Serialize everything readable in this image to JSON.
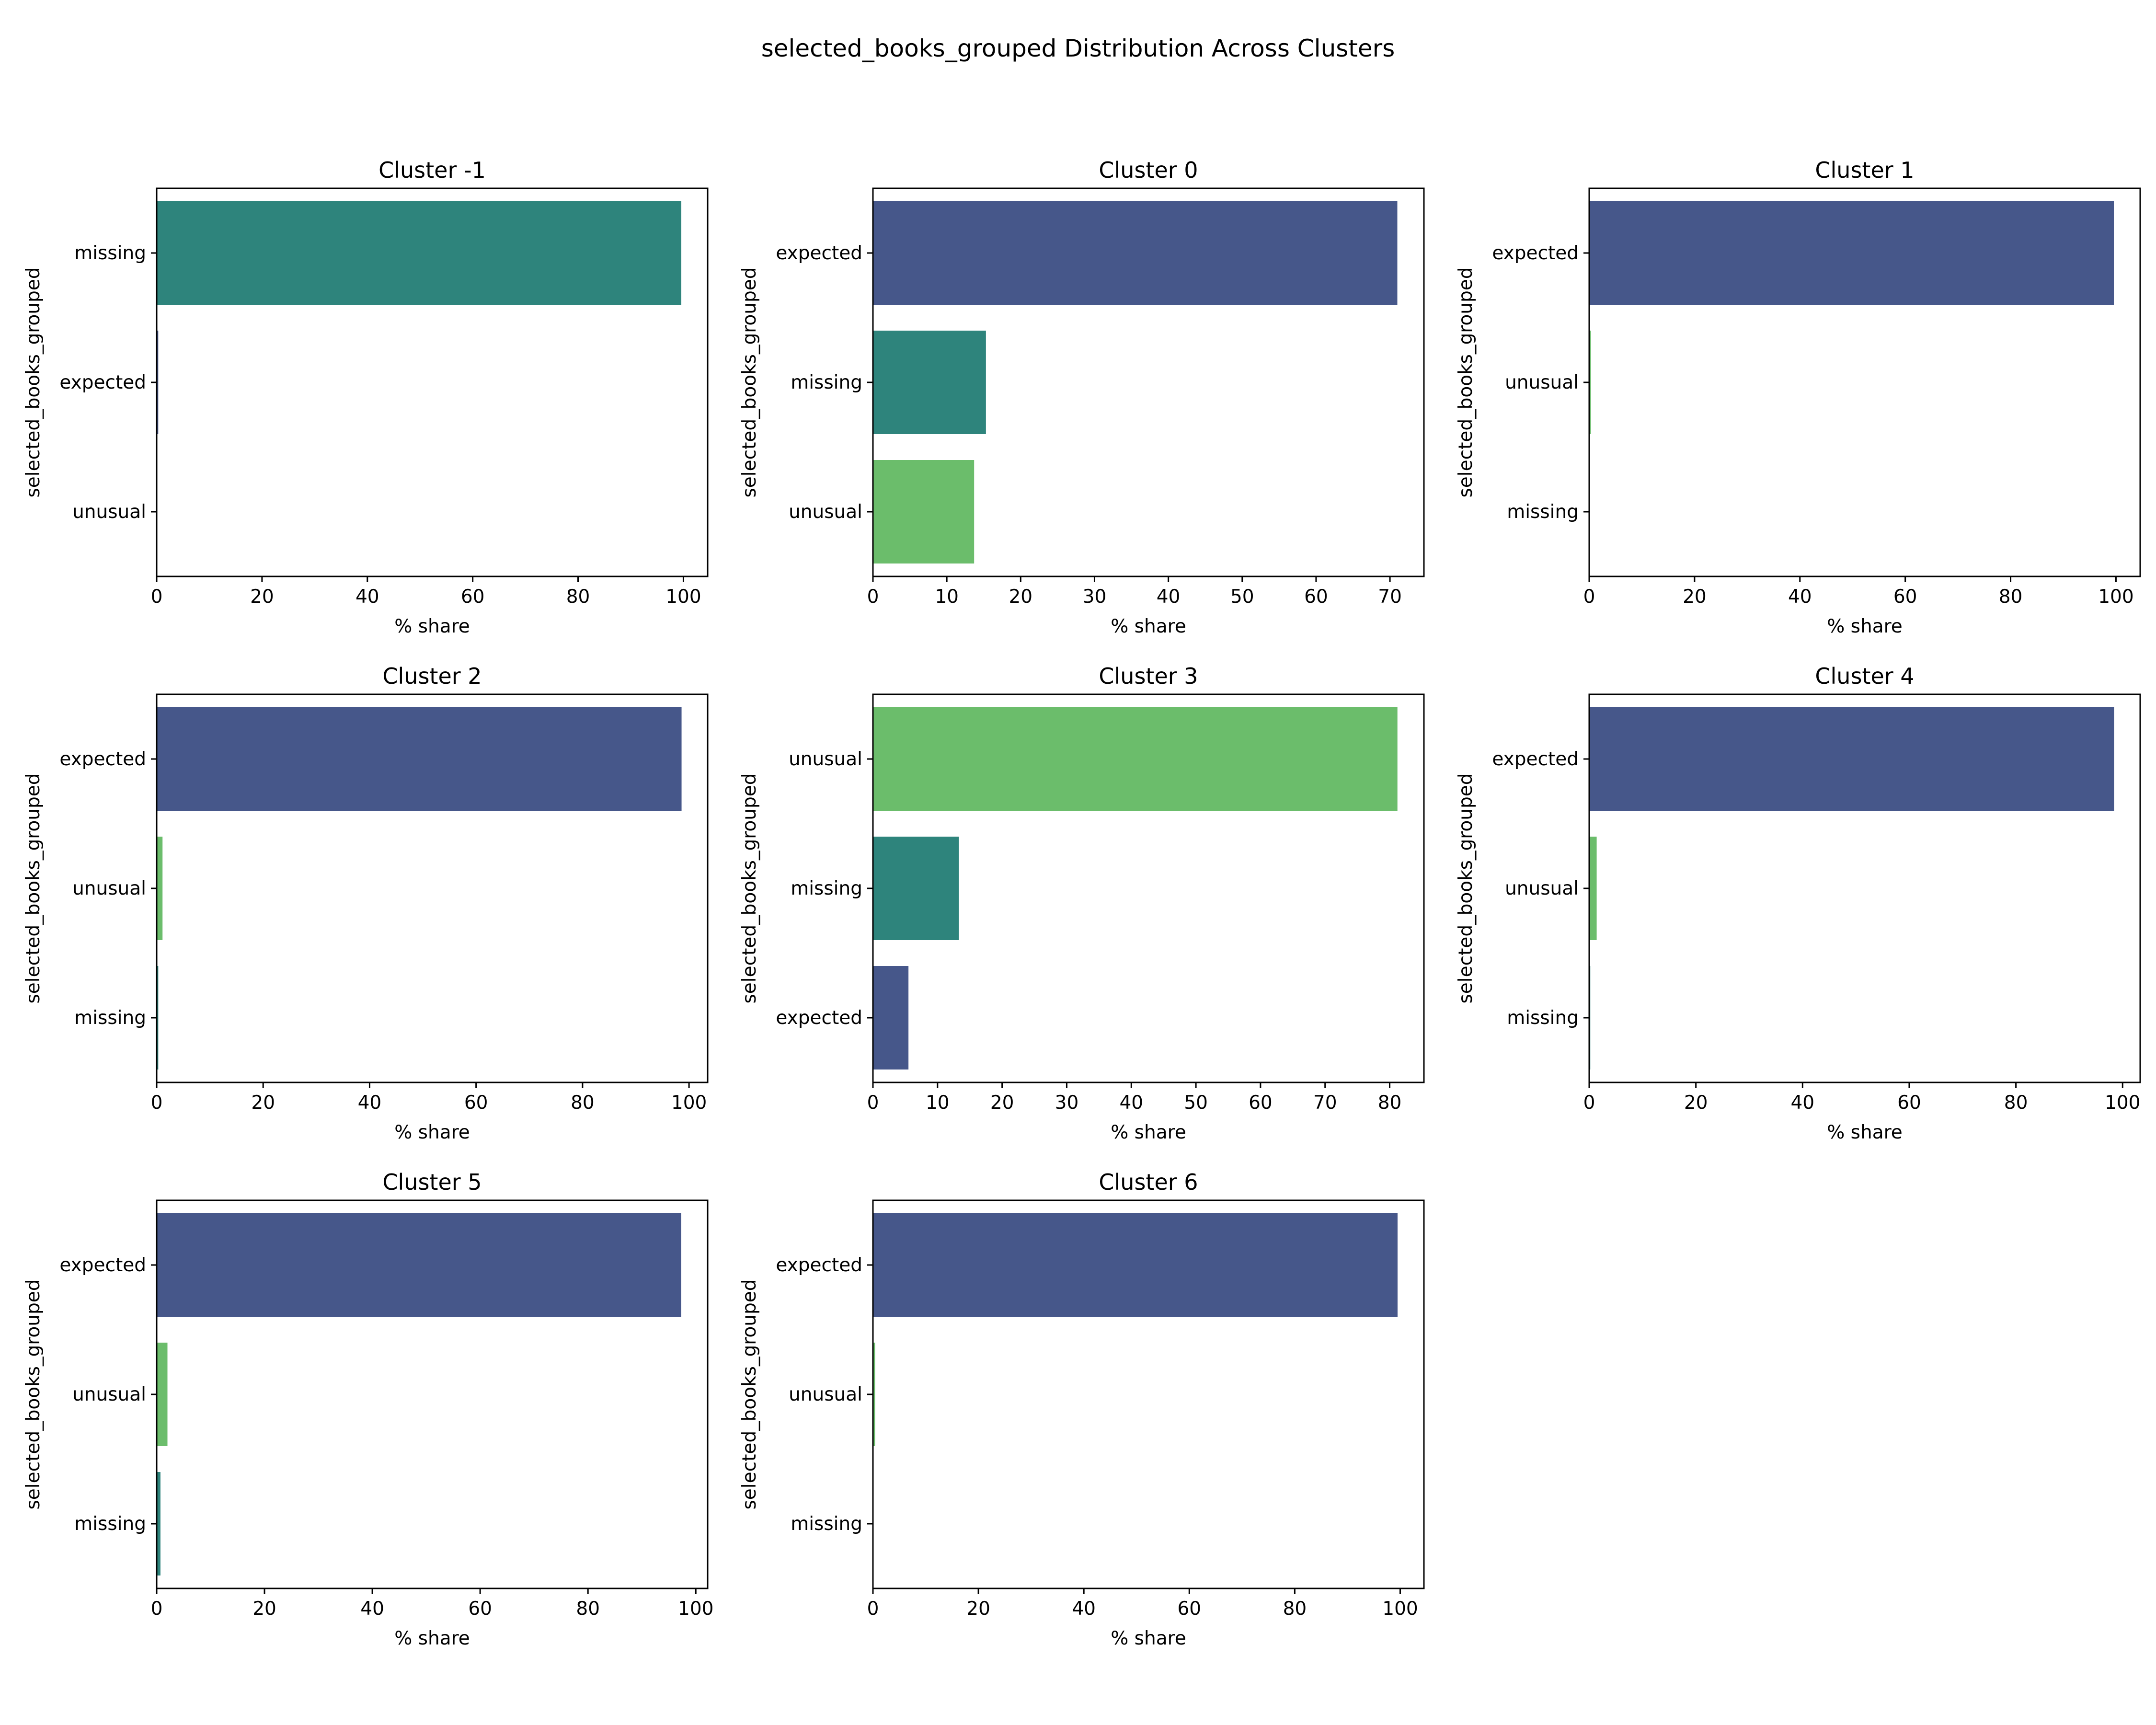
{
  "figure": {
    "title": "selected_books_grouped Distribution Across Clusters"
  },
  "colors": {
    "expected": "#46578a",
    "missing": "#2e847c",
    "unusual": "#6bbd6b"
  },
  "chart_data": [
    {
      "type": "bar",
      "orientation": "horizontal",
      "title": "Cluster -1",
      "xlabel": "% share",
      "ylabel": "selected_books_grouped",
      "categories": [
        "missing",
        "expected",
        "unusual"
      ],
      "values": [
        99.6,
        0.3,
        0.1
      ],
      "xlim": [
        0,
        104.6
      ],
      "xticks": [
        0,
        20,
        40,
        60,
        80,
        100
      ],
      "grid": false
    },
    {
      "type": "bar",
      "orientation": "horizontal",
      "title": "Cluster 0",
      "xlabel": "% share",
      "ylabel": "selected_books_grouped",
      "categories": [
        "expected",
        "missing",
        "unusual"
      ],
      "values": [
        71.0,
        15.3,
        13.7
      ],
      "xlim": [
        0,
        74.6
      ],
      "xticks": [
        0,
        10,
        20,
        30,
        40,
        50,
        60,
        70
      ],
      "grid": false
    },
    {
      "type": "bar",
      "orientation": "horizontal",
      "title": "Cluster 1",
      "xlabel": "% share",
      "ylabel": "selected_books_grouped",
      "categories": [
        "expected",
        "unusual",
        "missing"
      ],
      "values": [
        99.6,
        0.3,
        0.1
      ],
      "xlim": [
        0,
        104.6
      ],
      "xticks": [
        0,
        20,
        40,
        60,
        80,
        100
      ],
      "grid": false
    },
    {
      "type": "bar",
      "orientation": "horizontal",
      "title": "Cluster 2",
      "xlabel": "% share",
      "ylabel": "selected_books_grouped",
      "categories": [
        "expected",
        "unusual",
        "missing"
      ],
      "values": [
        98.6,
        1.1,
        0.3
      ],
      "xlim": [
        0,
        103.5
      ],
      "xticks": [
        0,
        20,
        40,
        60,
        80,
        100
      ],
      "grid": false
    },
    {
      "type": "bar",
      "orientation": "horizontal",
      "title": "Cluster 3",
      "xlabel": "% share",
      "ylabel": "selected_books_grouped",
      "categories": [
        "unusual",
        "missing",
        "expected"
      ],
      "values": [
        81.2,
        13.3,
        5.5
      ],
      "xlim": [
        0,
        85.3
      ],
      "xticks": [
        0,
        10,
        20,
        30,
        40,
        50,
        60,
        70,
        80
      ],
      "grid": false
    },
    {
      "type": "bar",
      "orientation": "horizontal",
      "title": "Cluster 4",
      "xlabel": "% share",
      "ylabel": "selected_books_grouped",
      "categories": [
        "expected",
        "unusual",
        "missing"
      ],
      "values": [
        98.4,
        1.4,
        0.2
      ],
      "xlim": [
        0,
        103.3
      ],
      "xticks": [
        0,
        20,
        40,
        60,
        80,
        100
      ],
      "grid": false
    },
    {
      "type": "bar",
      "orientation": "horizontal",
      "title": "Cluster 5",
      "xlabel": "% share",
      "ylabel": "selected_books_grouped",
      "categories": [
        "expected",
        "unusual",
        "missing"
      ],
      "values": [
        97.3,
        2.0,
        0.7
      ],
      "xlim": [
        0,
        102.2
      ],
      "xticks": [
        0,
        20,
        40,
        60,
        80,
        100
      ],
      "grid": false
    },
    {
      "type": "bar",
      "orientation": "horizontal",
      "title": "Cluster 6",
      "xlabel": "% share",
      "ylabel": "selected_books_grouped",
      "categories": [
        "expected",
        "unusual",
        "missing"
      ],
      "values": [
        99.5,
        0.4,
        0.1
      ],
      "xlim": [
        0,
        104.5
      ],
      "xticks": [
        0,
        20,
        40,
        60,
        80,
        100
      ],
      "grid": false
    }
  ]
}
